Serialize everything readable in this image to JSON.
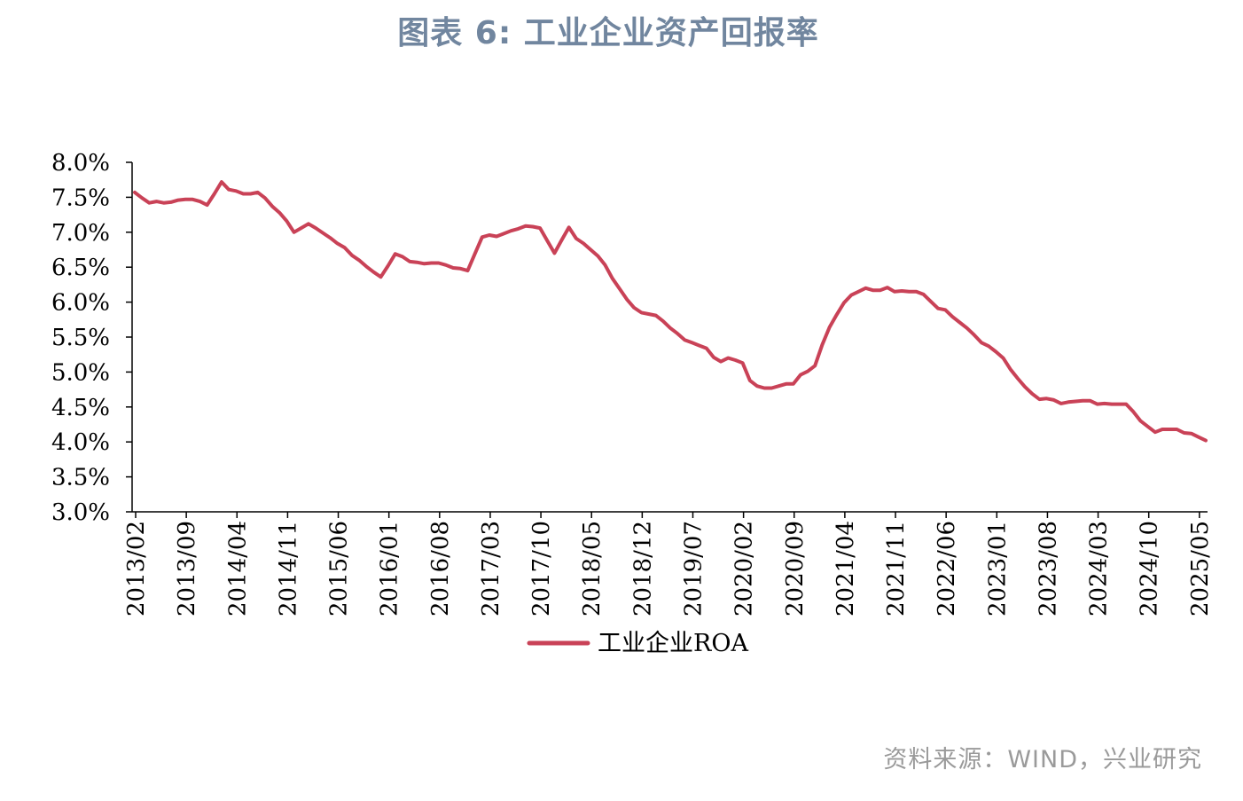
{
  "title": "图表  6: 工业企业资产回报率",
  "source": "资料来源：WIND，兴业研究",
  "chart_data": {
    "type": "line",
    "title": "图表  6: 工业企业资产回报率",
    "xlabel": "",
    "ylabel": "",
    "ylim": [
      3.0,
      8.0
    ],
    "yticks": [
      "3.0%",
      "3.5%",
      "4.0%",
      "4.5%",
      "5.0%",
      "5.5%",
      "6.0%",
      "6.5%",
      "7.0%",
      "7.5%",
      "8.0%"
    ],
    "xticks": [
      "2013/02",
      "2013/09",
      "2014/04",
      "2014/11",
      "2015/06",
      "2016/01",
      "2016/08",
      "2017/03",
      "2017/10",
      "2018/05",
      "2018/12",
      "2019/07",
      "2020/02",
      "2020/09",
      "2021/04",
      "2021/11",
      "2022/06",
      "2023/01",
      "2023/08",
      "2024/03",
      "2024/10",
      "2025/05"
    ],
    "grid": false,
    "legend_position": "bottom-center",
    "series": [
      {
        "name": "工业企业ROA",
        "color": "#c94257",
        "values": [
          7.57,
          7.49,
          7.42,
          7.44,
          7.42,
          7.43,
          7.46,
          7.47,
          7.47,
          7.44,
          7.39,
          7.55,
          7.72,
          7.61,
          7.59,
          7.55,
          7.55,
          7.57,
          7.49,
          7.37,
          7.28,
          7.16,
          7.0,
          7.06,
          7.12,
          7.06,
          6.99,
          6.92,
          6.84,
          6.78,
          6.67,
          6.6,
          6.51,
          6.43,
          6.36,
          6.52,
          6.69,
          6.65,
          6.58,
          6.57,
          6.55,
          6.56,
          6.56,
          6.53,
          6.49,
          6.48,
          6.45,
          6.69,
          6.93,
          6.96,
          6.94,
          6.98,
          7.02,
          7.05,
          7.09,
          7.08,
          7.06,
          6.88,
          6.7,
          6.89,
          7.07,
          6.91,
          6.84,
          6.75,
          6.66,
          6.53,
          6.34,
          6.19,
          6.04,
          5.92,
          5.85,
          5.83,
          5.81,
          5.73,
          5.63,
          5.55,
          5.46,
          5.42,
          5.38,
          5.34,
          5.21,
          5.15,
          5.2,
          5.17,
          5.13,
          4.88,
          4.8,
          4.77,
          4.77,
          4.8,
          4.83,
          4.83,
          4.96,
          5.01,
          5.09,
          5.39,
          5.64,
          5.82,
          5.99,
          6.1,
          6.15,
          6.2,
          6.17,
          6.17,
          6.21,
          6.15,
          6.16,
          6.15,
          6.15,
          6.11,
          6.01,
          5.91,
          5.89,
          5.79,
          5.71,
          5.63,
          5.53,
          5.42,
          5.37,
          5.29,
          5.2,
          5.04,
          4.91,
          4.79,
          4.69,
          4.61,
          4.62,
          4.6,
          4.55,
          4.57,
          4.58,
          4.59,
          4.59,
          4.54,
          4.55,
          4.54,
          4.54,
          4.54,
          4.43,
          4.3,
          4.22,
          4.14,
          4.18,
          4.18,
          4.18,
          4.13,
          4.12,
          4.07,
          4.02
        ]
      }
    ]
  }
}
